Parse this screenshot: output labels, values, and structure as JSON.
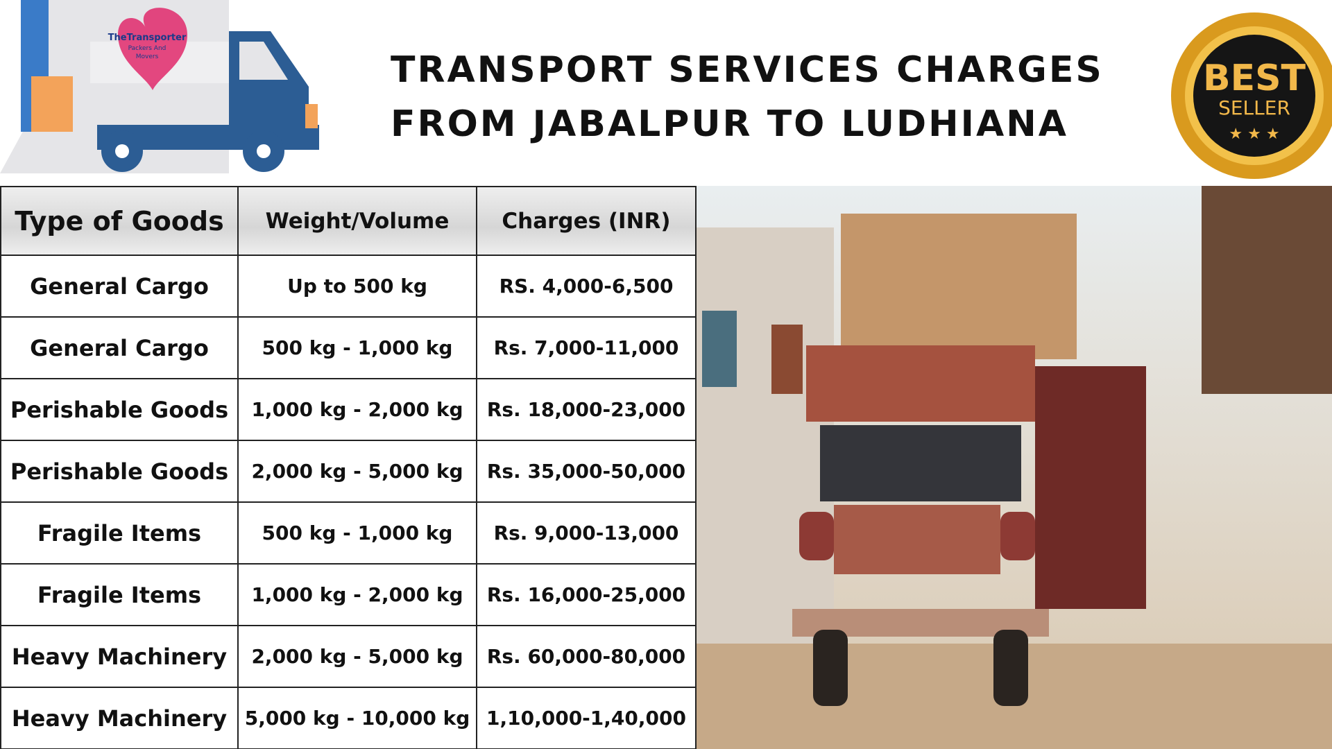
{
  "header": {
    "title_lines": [
      "TRANSPORT SERVICES CHARGES",
      "FROM JABALPUR TO LUDHIANA"
    ]
  },
  "logo": {
    "lines": [
      "TheTransporter",
      "Packers And",
      "Movers"
    ]
  },
  "badge": {
    "top": "BEST",
    "bottom": "SELLER"
  },
  "table": {
    "columns": [
      "Type of Goods",
      "Weight/Volume",
      "Charges (INR)"
    ],
    "rows": [
      [
        "General Cargo",
        "Up to 500 kg",
        "RS. 4,000-6,500"
      ],
      [
        "General Cargo",
        "500 kg - 1,000 kg",
        "Rs. 7,000-11,000"
      ],
      [
        "Perishable Goods",
        "1,000 kg - 2,000 kg",
        "Rs. 18,000-23,000"
      ],
      [
        "Perishable Goods",
        "2,000 kg - 5,000 kg",
        "Rs. 35,000-50,000"
      ],
      [
        "Fragile Items",
        "500 kg - 1,000 kg",
        "Rs. 9,000-13,000"
      ],
      [
        "Fragile Items",
        "1,000 kg - 2,000 kg",
        "Rs. 16,000-25,000"
      ],
      [
        "Heavy Machinery",
        "2,000 kg - 5,000 kg",
        "Rs. 60,000-80,000"
      ],
      [
        "Heavy Machinery",
        "5,000 kg - 10,000 kg",
        "1,10,000-1,40,000"
      ]
    ]
  }
}
